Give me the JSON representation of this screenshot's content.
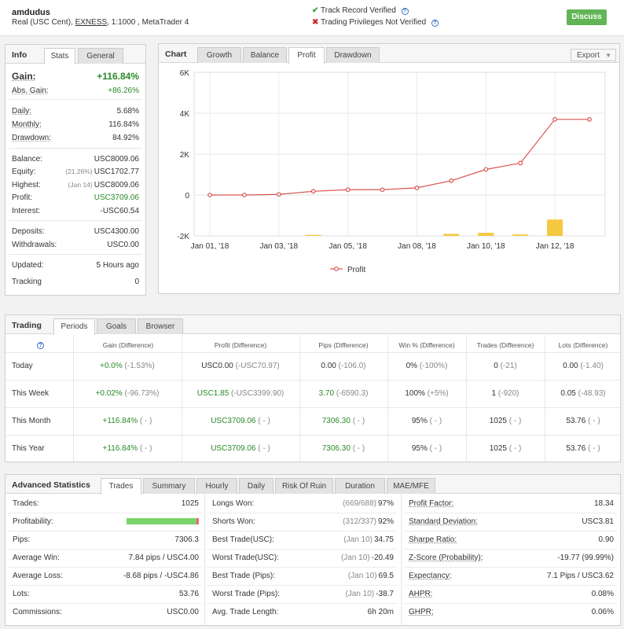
{
  "header": {
    "account_name": "amdudus",
    "account_type": "Real (USC Cent),",
    "broker": "EXNESS",
    "account_rest": ", 1:1000 , MetaTrader 4",
    "track_record": "Track Record Verified",
    "trading_privileges": "Trading Privileges Not Verified",
    "discuss_label": "Discuss",
    "help_q": "?"
  },
  "info": {
    "title": "Info",
    "tabs": [
      "Stats",
      "General"
    ],
    "gain_label": "Gain:",
    "gain_value": "+116.84%",
    "abs_gain_label": "Abs. Gain:",
    "abs_gain_value": "+86.26%",
    "daily_label": "Daily:",
    "daily_value": "5.68%",
    "monthly_label": "Monthly:",
    "monthly_value": "116.84%",
    "drawdown_label": "Drawdown:",
    "drawdown_value": "84.92%",
    "balance_label": "Balance:",
    "balance_value": "USC8009.06",
    "equity_label": "Equity:",
    "equity_note": "(21.26%)",
    "equity_value": "USC1702.77",
    "highest_label": "Highest:",
    "highest_note": "(Jan 14)",
    "highest_value": "USC8009.06",
    "profit_label": "Profit:",
    "profit_value": "USC3709.06",
    "interest_label": "Interest:",
    "interest_value": "-USC60.54",
    "deposits_label": "Deposits:",
    "deposits_value": "USC4300.00",
    "withdrawals_label": "Withdrawals:",
    "withdrawals_value": "USC0.00",
    "updated_label": "Updated:",
    "updated_value": "5 Hours ago",
    "tracking_label": "Tracking",
    "tracking_value": "0"
  },
  "chart_panel": {
    "title": "Chart",
    "tabs": [
      "Growth",
      "Balance",
      "Profit",
      "Drawdown"
    ],
    "active_tab": "Profit",
    "export_label": "Export",
    "legend_label": "Profit"
  },
  "chart_data": {
    "type": "line",
    "title": "",
    "y_ticks": [
      "6K",
      "4K",
      "2K",
      "0",
      "-2K"
    ],
    "x_ticks": [
      "Jan 01, '18",
      "Jan 03, '18",
      "Jan 05, '18",
      "Jan 08, '18",
      "Jan 10, '18",
      "Jan 12, '18"
    ],
    "ylim": [
      -2000,
      6000
    ],
    "x_index_range": [
      0,
      11
    ],
    "x_tick_index": [
      0,
      2,
      4,
      6,
      8,
      10
    ],
    "series": [
      {
        "name": "Profit",
        "color": "#d9534f",
        "x_index": [
          0,
          1,
          2,
          3,
          4,
          5,
          6,
          7,
          8,
          9,
          10,
          11
        ],
        "values": [
          0,
          0,
          30,
          180,
          260,
          260,
          350,
          700,
          1250,
          1560,
          3700,
          3700
        ]
      }
    ],
    "bars": {
      "color": "#f5c842",
      "x_index": [
        3,
        7,
        8,
        9,
        10
      ],
      "values": [
        -1950,
        -1900,
        -1850,
        -1930,
        -1200
      ]
    }
  },
  "trading": {
    "title": "Trading",
    "tabs": [
      "Periods",
      "Goals",
      "Browser"
    ],
    "columns": [
      "Gain (Difference)",
      "Profit (Difference)",
      "Pips (Difference)",
      "Win % (Difference)",
      "Trades (Difference)",
      "Lots (Difference)"
    ],
    "rows": [
      {
        "period": "Today",
        "gain": "+0.0%",
        "gain_d": "(-1.53%)",
        "profit": "USC0.00",
        "profit_d": "(-USC70.97)",
        "pips": "0.00",
        "pips_d": "(-106.0)",
        "win": "0%",
        "win_d": "(-100%)",
        "trades": "0",
        "trades_d": "(-21)",
        "lots": "0.00",
        "lots_d": "(-1.40)"
      },
      {
        "period": "This Week",
        "gain": "+0.02%",
        "gain_d": "(-96.73%)",
        "profit": "USC1.85",
        "profit_d": "(-USC3399.90)",
        "pips": "3.70",
        "pips_d": "(-6590.3)",
        "win": "100%",
        "win_d": "(+5%)",
        "trades": "1",
        "trades_d": "(-920)",
        "lots": "0.05",
        "lots_d": "(-48.93)"
      },
      {
        "period": "This Month",
        "gain": "+116.84%",
        "gain_d": "( - )",
        "profit": "USC3709.06",
        "profit_d": "( - )",
        "pips": "7306.30",
        "pips_d": "( - )",
        "win": "95%",
        "win_d": "( - )",
        "trades": "1025",
        "trades_d": "( - )",
        "lots": "53.76",
        "lots_d": "( - )"
      },
      {
        "period": "This Year",
        "gain": "+116.84%",
        "gain_d": "( - )",
        "profit": "USC3709.06",
        "profit_d": "( - )",
        "pips": "7306.30",
        "pips_d": "( - )",
        "win": "95%",
        "win_d": "( - )",
        "trades": "1025",
        "trades_d": "( - )",
        "lots": "53.76",
        "lots_d": "( - )"
      }
    ]
  },
  "advanced": {
    "title": "Advanced Statistics",
    "tabs": [
      "Trades",
      "Summary",
      "Hourly",
      "Daily",
      "Risk Of Ruin",
      "Duration",
      "MAE/MFE"
    ],
    "profitability_win": 0.97,
    "col1": [
      {
        "label": "Trades:",
        "value": "1025"
      },
      {
        "label": "Profitability:",
        "value": ""
      },
      {
        "label": "Pips:",
        "value": "7306.3"
      },
      {
        "label": "Average Win:",
        "value": "7.84 pips / USC4.00"
      },
      {
        "label": "Average Loss:",
        "value": "-8.68 pips / -USC4.86"
      },
      {
        "label": "Lots:",
        "value": "53.76"
      },
      {
        "label": "Commissions:",
        "value": "USC0.00"
      }
    ],
    "col2": [
      {
        "label": "Longs Won:",
        "note": "(669/688)",
        "value": "97%"
      },
      {
        "label": "Shorts Won:",
        "note": "(312/337)",
        "value": "92%"
      },
      {
        "label": "Best Trade(USC):",
        "note": "(Jan 10)",
        "value": "34.75"
      },
      {
        "label": "Worst Trade(USC):",
        "note": "(Jan 10)",
        "value": "-20.49"
      },
      {
        "label": "Best Trade (Pips):",
        "note": "(Jan 10)",
        "value": "69.5"
      },
      {
        "label": "Worst Trade (Pips):",
        "note": "(Jan 10)",
        "value": "-38.7"
      },
      {
        "label": "Avg. Trade Length:",
        "note": "",
        "value": "6h 20m"
      }
    ],
    "col3": [
      {
        "label": "Profit Factor:",
        "value": "18.34"
      },
      {
        "label": "Standard Deviation:",
        "value": "USC3.81"
      },
      {
        "label": "Sharpe Ratio:",
        "value": "0.90"
      },
      {
        "label": "Z-Score (Probability):",
        "value": "-19.77 (99.99%)"
      },
      {
        "label": "Expectancy:",
        "value": "7.1 Pips / USC3.62"
      },
      {
        "label": "AHPR:",
        "value": "0.08%"
      },
      {
        "label": "GHPR:",
        "value": "0.06%"
      }
    ]
  }
}
